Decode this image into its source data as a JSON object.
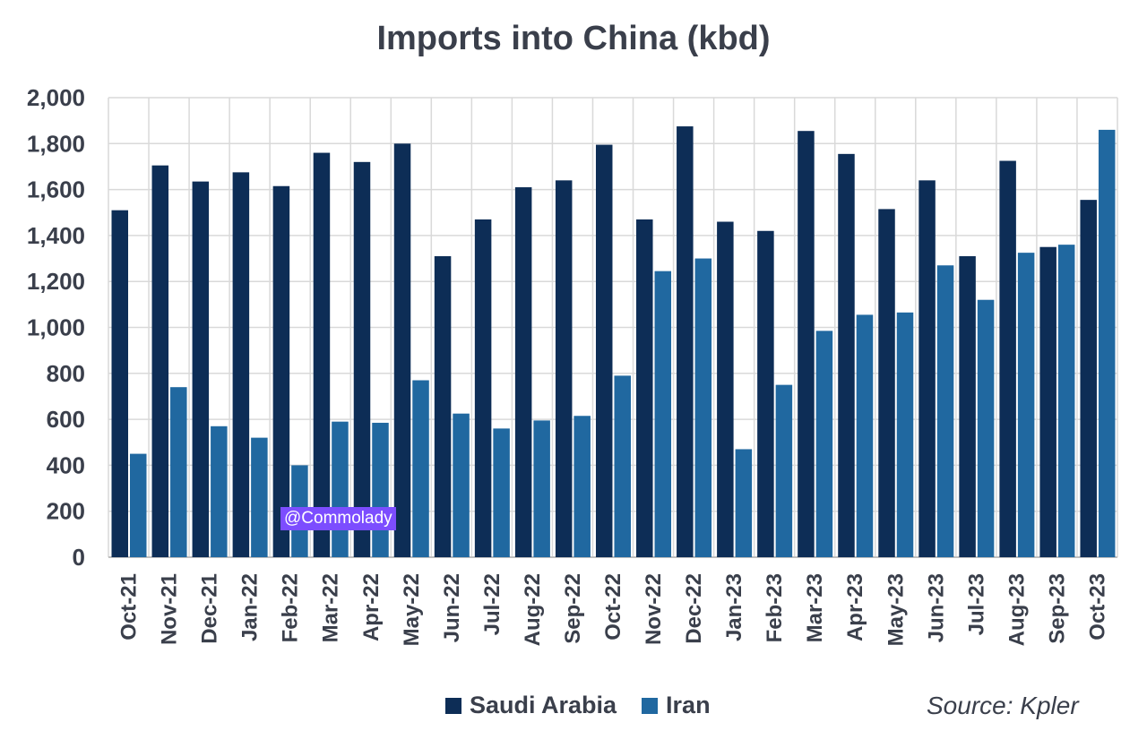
{
  "chart_data": {
    "type": "bar",
    "title": "Imports into China (kbd)",
    "categories": [
      "Oct-21",
      "Nov-21",
      "Dec-21",
      "Jan-22",
      "Feb-22",
      "Mar-22",
      "Apr-22",
      "May-22",
      "Jun-22",
      "Jul-22",
      "Aug-22",
      "Sep-22",
      "Oct-22",
      "Nov-22",
      "Dec-22",
      "Jan-23",
      "Feb-23",
      "Mar-23",
      "Apr-23",
      "May-23",
      "Jun-23",
      "Jul-23",
      "Aug-23",
      "Sep-23",
      "Oct-23"
    ],
    "series": [
      {
        "name": "Saudi Arabia",
        "color": "#0d2d56",
        "values": [
          1510,
          1705,
          1635,
          1675,
          1615,
          1760,
          1720,
          1800,
          1310,
          1470,
          1610,
          1640,
          1795,
          1470,
          1875,
          1460,
          1420,
          1855,
          1755,
          1515,
          1640,
          1310,
          1725,
          1350,
          1555
        ]
      },
      {
        "name": "Iran",
        "color": "#2068a0",
        "values": [
          450,
          740,
          570,
          520,
          400,
          590,
          585,
          770,
          625,
          560,
          595,
          615,
          790,
          1245,
          1300,
          470,
          750,
          985,
          1055,
          1065,
          1270,
          1120,
          1325,
          1360,
          1860
        ]
      }
    ],
    "ylim": [
      0,
      2000
    ],
    "yticks": [
      0,
      200,
      400,
      600,
      800,
      1000,
      1200,
      1400,
      1600,
      1800,
      2000
    ],
    "ytick_labels": [
      "0",
      "200",
      "400",
      "600",
      "800",
      "1,000",
      "1,200",
      "1,400",
      "1,600",
      "1,800",
      "2,000"
    ],
    "grid": true,
    "legend_position": "bottom"
  },
  "source": "Source: Kpler",
  "watermark": "@Commolady"
}
